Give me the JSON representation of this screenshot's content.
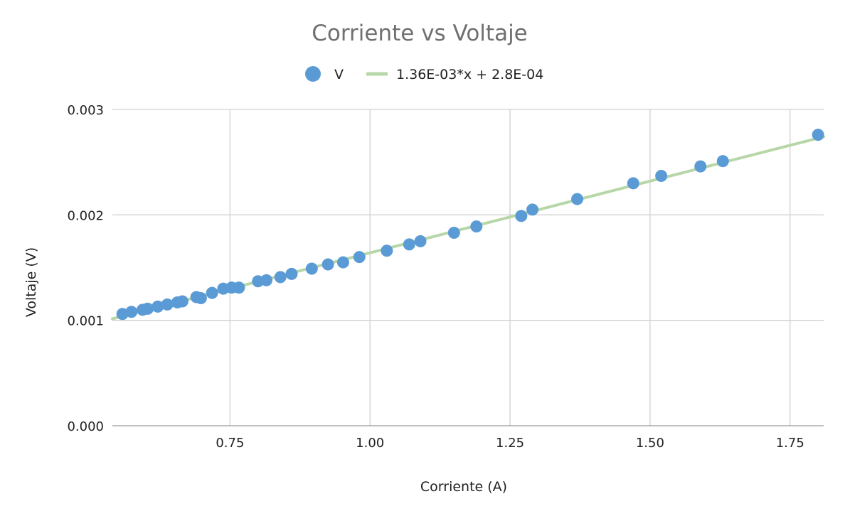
{
  "chart_data": {
    "type": "scatter",
    "title": "Corriente vs Voltaje",
    "xlabel": "Corriente (A)",
    "ylabel": "Voltaje (V)",
    "xlim": [
      0.54,
      1.81
    ],
    "ylim": [
      0,
      0.003
    ],
    "x_ticks": [
      0.75,
      1.0,
      1.25,
      1.5,
      1.75
    ],
    "x_tick_labels": [
      "0.75",
      "1.00",
      "1.25",
      "1.50",
      "1.75"
    ],
    "y_ticks": [
      0,
      0.001,
      0.002,
      0.003
    ],
    "y_tick_labels": [
      "0.000",
      "0.001",
      "0.002",
      "0.003"
    ],
    "grid": true,
    "legend_position": "top-center",
    "series": [
      {
        "name": "V",
        "kind": "points",
        "color": "#5b9bd5",
        "points": [
          [
            0.558,
            0.00106
          ],
          [
            0.574,
            0.00108
          ],
          [
            0.594,
            0.0011
          ],
          [
            0.603,
            0.00111
          ],
          [
            0.621,
            0.00113
          ],
          [
            0.638,
            0.00115
          ],
          [
            0.656,
            0.00117
          ],
          [
            0.665,
            0.00118
          ],
          [
            0.69,
            0.00122
          ],
          [
            0.698,
            0.00121
          ],
          [
            0.718,
            0.00126
          ],
          [
            0.738,
            0.0013
          ],
          [
            0.753,
            0.00131
          ],
          [
            0.766,
            0.00131
          ],
          [
            0.8,
            0.00137
          ],
          [
            0.815,
            0.00138
          ],
          [
            0.84,
            0.00141
          ],
          [
            0.86,
            0.00144
          ],
          [
            0.896,
            0.00149
          ],
          [
            0.925,
            0.00153
          ],
          [
            0.952,
            0.00155
          ],
          [
            0.981,
            0.0016
          ],
          [
            1.03,
            0.00166
          ],
          [
            1.07,
            0.00172
          ],
          [
            1.09,
            0.00175
          ],
          [
            1.15,
            0.00183
          ],
          [
            1.19,
            0.00189
          ],
          [
            1.27,
            0.00199
          ],
          [
            1.29,
            0.00205
          ],
          [
            1.37,
            0.00215
          ],
          [
            1.47,
            0.0023
          ],
          [
            1.52,
            0.00237
          ],
          [
            1.59,
            0.00246
          ],
          [
            1.63,
            0.00251
          ],
          [
            1.8,
            0.00276
          ]
        ]
      },
      {
        "name": "1.36E-03*x + 2.8E-04",
        "kind": "trendline",
        "color": "#b7d7a8",
        "slope": 0.00136,
        "intercept": 0.00028
      }
    ]
  }
}
